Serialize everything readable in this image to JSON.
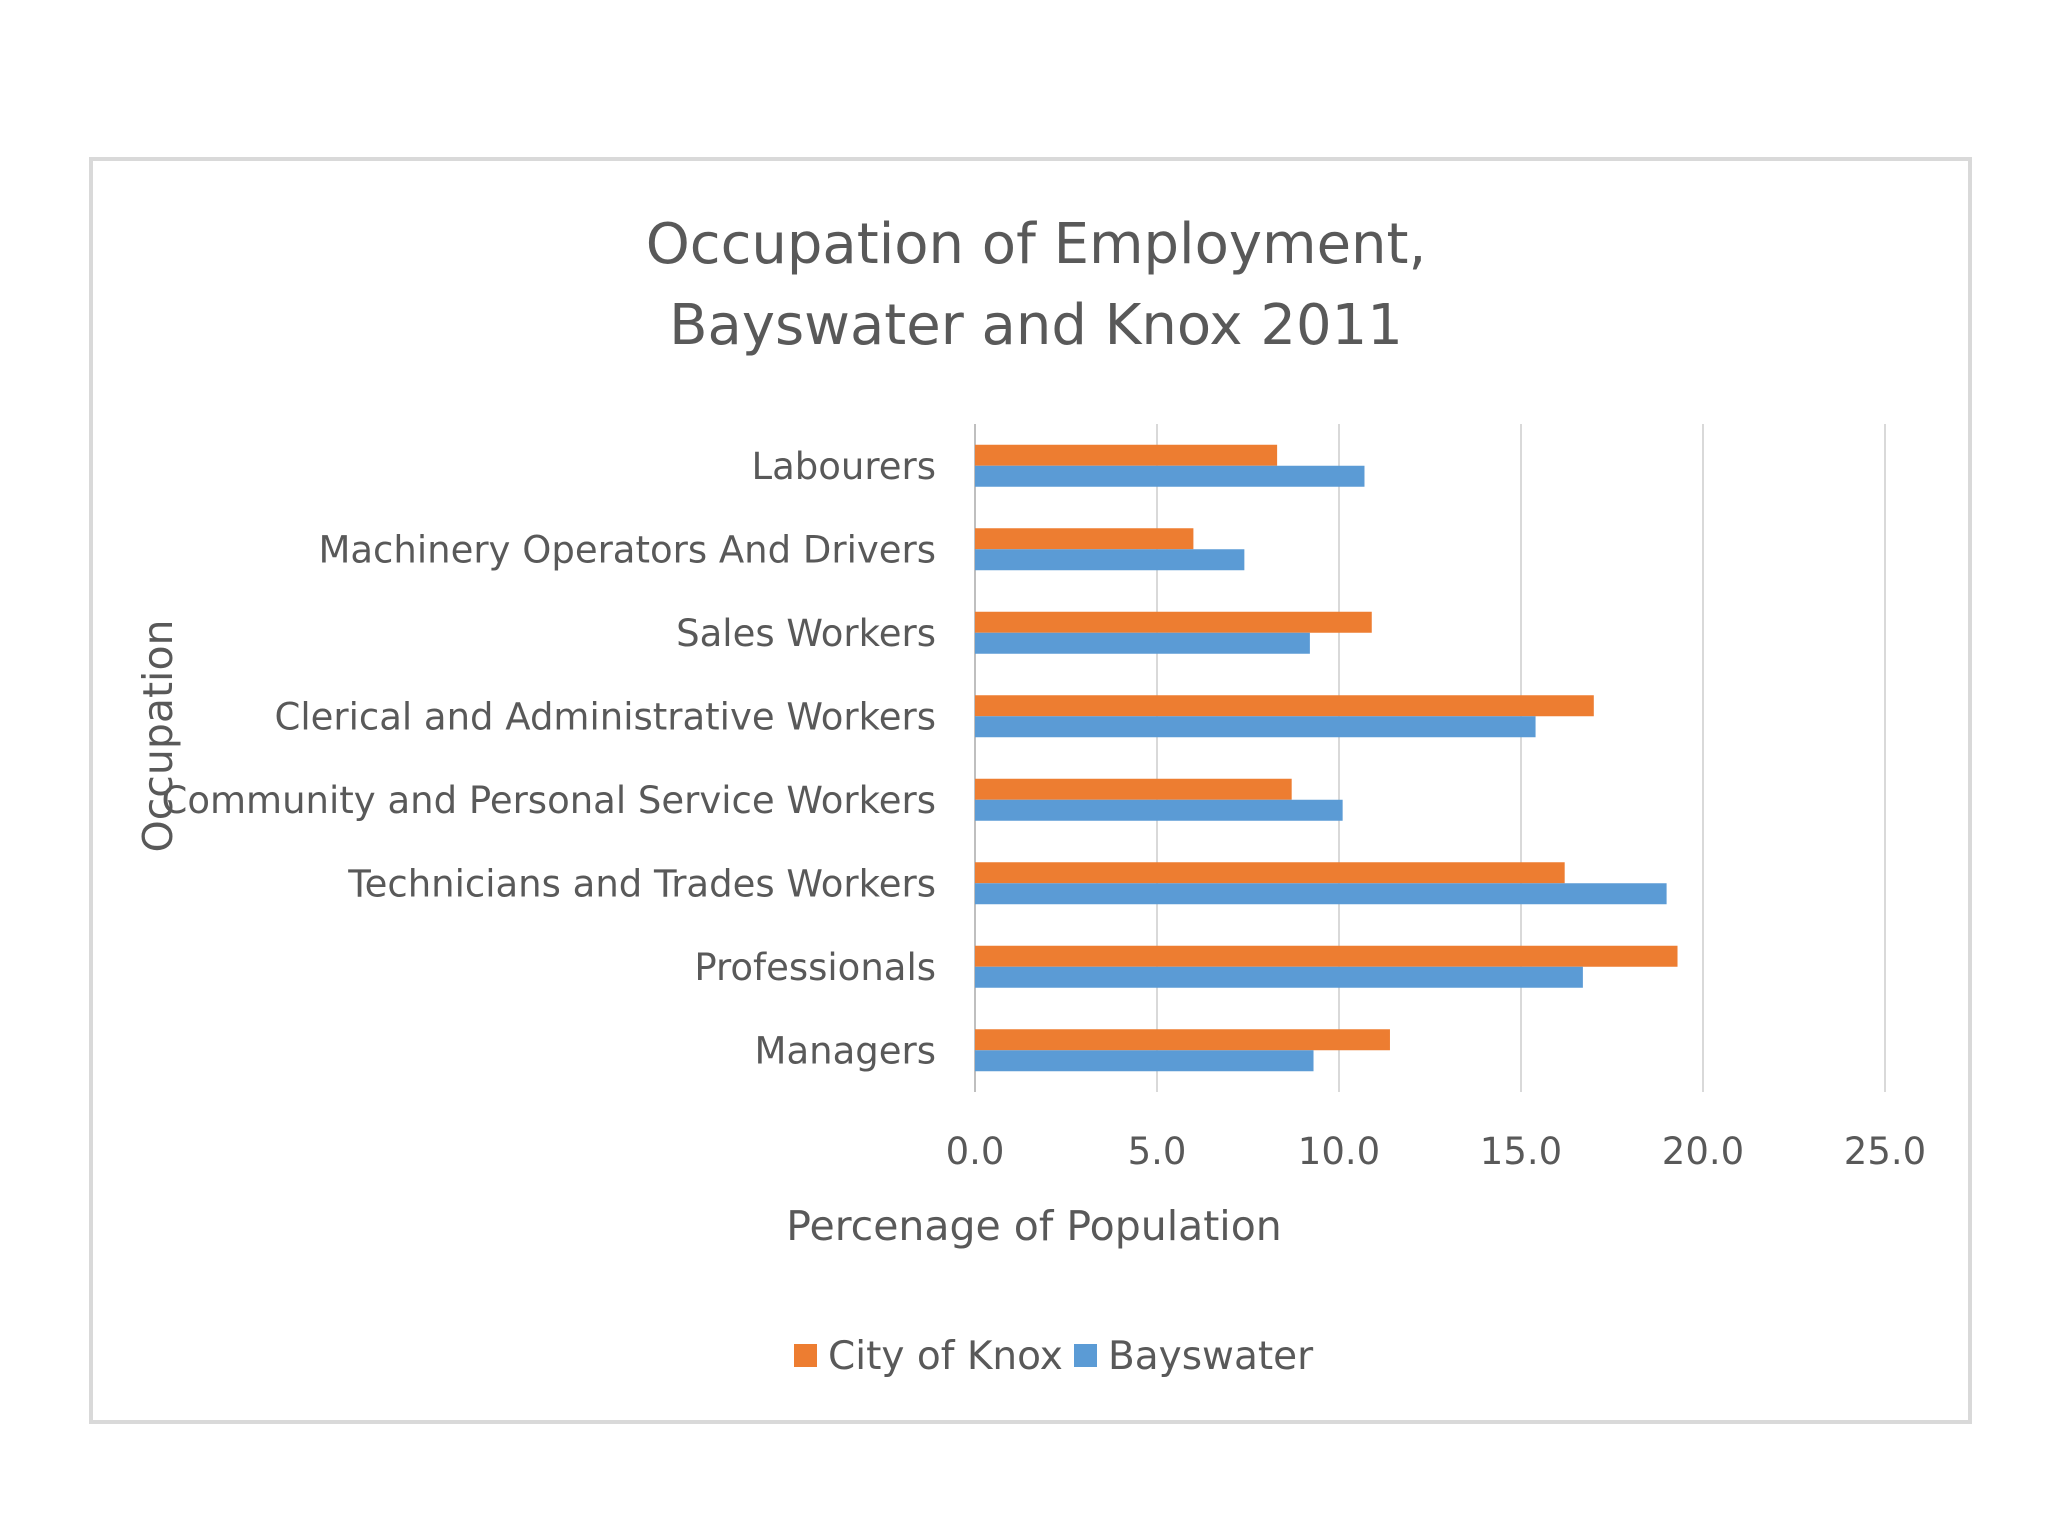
{
  "chart_data": {
    "type": "bar",
    "orientation": "horizontal",
    "title": [
      "Occupation of Employment,",
      "Bayswater and Knox 2011"
    ],
    "xlabel": "Percenage of Population",
    "ylabel": "Occupation",
    "xlim": [
      0,
      25
    ],
    "xticks": [
      "0.0",
      "5.0",
      "10.0",
      "15.0",
      "20.0",
      "25.0"
    ],
    "grid": true,
    "legend_position": "bottom",
    "categories": [
      "Labourers",
      "Machinery Operators And Drivers",
      "Sales Workers",
      "Clerical and Administrative Workers",
      "Community and Personal Service Workers",
      "Technicians and Trades Workers",
      "Professionals",
      "Managers"
    ],
    "series": [
      {
        "name": "City of Knox",
        "color": "#ED7D31",
        "values": [
          8.3,
          6.0,
          10.9,
          17.0,
          8.7,
          16.2,
          19.3,
          11.4
        ]
      },
      {
        "name": "Bayswater",
        "color": "#5B9BD5",
        "values": [
          10.7,
          7.4,
          9.2,
          15.4,
          10.1,
          19.0,
          16.7,
          9.3
        ]
      }
    ]
  }
}
